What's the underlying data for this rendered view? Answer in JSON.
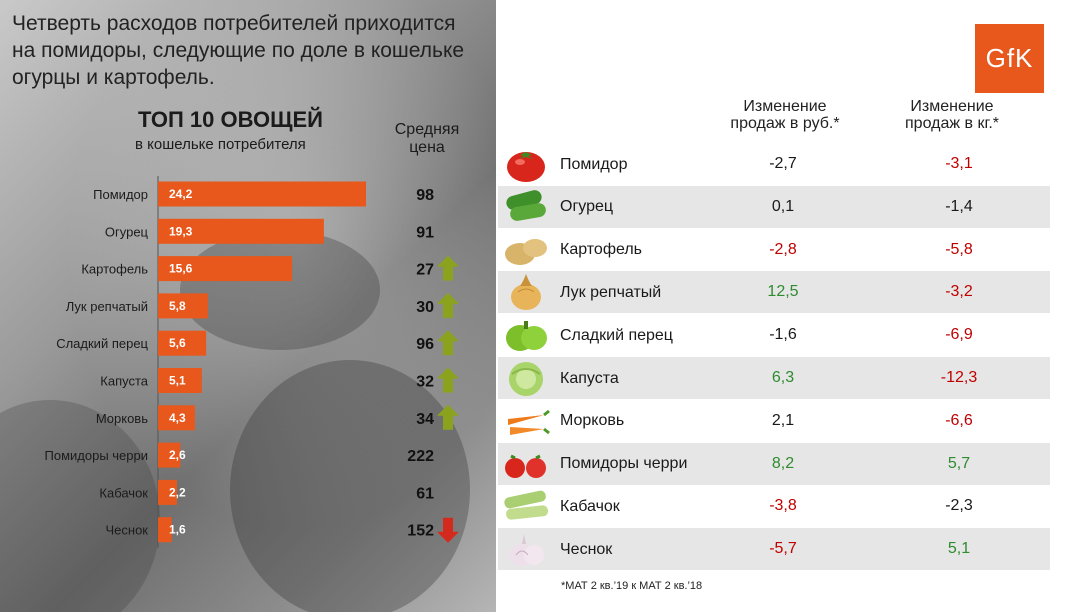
{
  "headline": "Четверть расходов потребителей приходится на помидоры, следующие по доле в кошельке огурцы и картофель.",
  "logo_text": "GfK",
  "top10": {
    "title": "ТОП 10 ОВОЩЕЙ",
    "subtitle": "в кошельке потребителя",
    "price_header": "Средняя цена"
  },
  "chart_data": {
    "type": "bar",
    "orientation": "horizontal",
    "title": "ТОП 10 ОВОЩЕЙ",
    "subtitle": "в кошельке потребителя",
    "categories": [
      "Помидор",
      "Огурец",
      "Картофель",
      "Лук репчатый",
      "Сладкий перец",
      "Капуста",
      "Морковь",
      "Помидоры черри",
      "Кабачок",
      "Чеснок"
    ],
    "values": [
      24.2,
      19.3,
      15.6,
      5.8,
      5.6,
      5.1,
      4.3,
      2.6,
      2.2,
      1.6
    ],
    "value_labels": [
      "24,2",
      "19,3",
      "15,6",
      "5,8",
      "5,6",
      "5,1",
      "4,3",
      "2,6",
      "2,2",
      "1,6"
    ],
    "price_header": "Средняя цена",
    "prices": [
      "98",
      "91",
      "27",
      "30",
      "96",
      "32",
      "34",
      "222",
      "61",
      "152"
    ],
    "price_trend": [
      "none",
      "none",
      "up",
      "up",
      "up",
      "up",
      "up",
      "none",
      "none",
      "down"
    ],
    "bar_color": "#e8581c",
    "up_color": "#8aa31e",
    "down_color": "#d42a1e"
  },
  "table": {
    "col_rub": "Изменение продаж в руб.*",
    "col_kg": "Изменение продаж в кг.*",
    "rows": [
      {
        "name": "Помидор",
        "rub": "-2,7",
        "kg": "-3,1",
        "rub_color": "neu",
        "kg_color": "neg",
        "icon": "tomato-icon"
      },
      {
        "name": "Огурец",
        "rub": "0,1",
        "kg": "-1,4",
        "rub_color": "neu",
        "kg_color": "neu",
        "icon": "cucumber-icon"
      },
      {
        "name": "Картофель",
        "rub": "-2,8",
        "kg": "-5,8",
        "rub_color": "neg",
        "kg_color": "neg",
        "icon": "potato-icon"
      },
      {
        "name": "Лук репчатый",
        "rub": "12,5",
        "kg": "-3,2",
        "rub_color": "pos",
        "kg_color": "neg",
        "icon": "onion-icon"
      },
      {
        "name": "Сладкий перец",
        "rub": "-1,6",
        "kg": "-6,9",
        "rub_color": "neu",
        "kg_color": "neg",
        "icon": "pepper-icon"
      },
      {
        "name": "Капуста",
        "rub": "6,3",
        "kg": "-12,3",
        "rub_color": "pos",
        "kg_color": "neg",
        "icon": "cabbage-icon"
      },
      {
        "name": "Морковь",
        "rub": "2,1",
        "kg": "-6,6",
        "rub_color": "neu",
        "kg_color": "neg",
        "icon": "carrot-icon"
      },
      {
        "name": "Помидоры черри",
        "rub": "8,2",
        "kg": "5,7",
        "rub_color": "pos",
        "kg_color": "pos",
        "icon": "cherry-tomato-icon"
      },
      {
        "name": "Кабачок",
        "rub": "-3,8",
        "kg": "-2,3",
        "rub_color": "neg",
        "kg_color": "neu",
        "icon": "zucchini-icon"
      },
      {
        "name": "Чеснок",
        "rub": "-5,7",
        "kg": "5,1",
        "rub_color": "neg",
        "kg_color": "pos",
        "icon": "garlic-icon"
      }
    ]
  },
  "footnote": "*МАТ 2 кв.’19 к МАТ 2 кв.’18"
}
